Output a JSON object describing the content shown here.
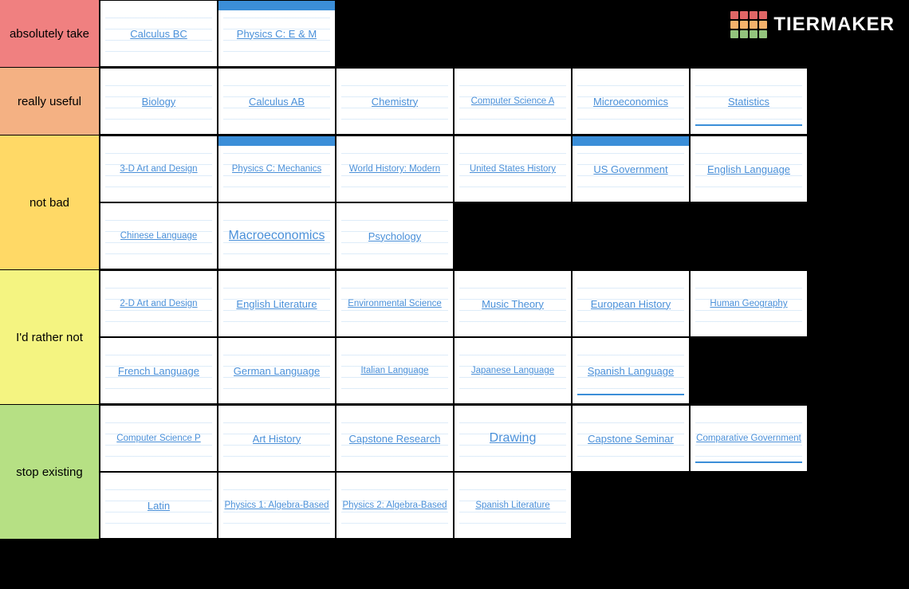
{
  "brand": {
    "name": "TIERMAKER"
  },
  "logo_colors": {
    "row1": "#e06666",
    "row2": "#f6b26b",
    "row3": "#93c47d"
  },
  "link_color": "#4a90d9",
  "topbar_color": "#3b8ed8",
  "item_bg": "#ffffff",
  "page_bg": "#000000",
  "tiers": [
    {
      "label": "absolutely take",
      "color": "#f08080",
      "items": [
        {
          "text": "Calculus BC",
          "size": "normal",
          "topbar": false
        },
        {
          "text": "Physics C: E & M",
          "size": "normal",
          "topbar": true
        }
      ]
    },
    {
      "label": "really useful",
      "color": "#f4b183",
      "items": [
        {
          "text": "Biology",
          "size": "normal"
        },
        {
          "text": "Calculus AB",
          "size": "normal"
        },
        {
          "text": "Chemistry",
          "size": "normal"
        },
        {
          "text": "Computer Science A",
          "size": "small"
        },
        {
          "text": "Microeconomics",
          "size": "normal"
        },
        {
          "text": "Statistics",
          "size": "normal",
          "botline": true
        }
      ]
    },
    {
      "label": "not bad",
      "color": "#ffd966",
      "items": [
        {
          "text": "3-D Art and Design",
          "size": "small"
        },
        {
          "text": "Physics C: Mechanics",
          "size": "small",
          "topbar": true
        },
        {
          "text": "World History: Modern",
          "size": "small"
        },
        {
          "text": "United States History",
          "size": "small"
        },
        {
          "text": "US Government",
          "size": "normal",
          "topbar": true
        },
        {
          "text": "English Language",
          "size": "normal"
        },
        {
          "text": "Chinese Language",
          "size": "small"
        },
        {
          "text": "Macroeconomics",
          "size": "big"
        },
        {
          "text": "Psychology",
          "size": "normal"
        }
      ]
    },
    {
      "label": "I'd rather not",
      "color": "#f4f481",
      "items": [
        {
          "text": "2-D Art and Design",
          "size": "small"
        },
        {
          "text": "English Literature",
          "size": "normal"
        },
        {
          "text": "Environmental Science",
          "size": "small"
        },
        {
          "text": "Music Theory",
          "size": "normal"
        },
        {
          "text": "European History",
          "size": "normal"
        },
        {
          "text": "Human Geography",
          "size": "small"
        },
        {
          "text": "French Language",
          "size": "normal"
        },
        {
          "text": "German Language",
          "size": "normal"
        },
        {
          "text": "Italian Language",
          "size": "small"
        },
        {
          "text": "Japanese Language",
          "size": "small"
        },
        {
          "text": "Spanish Language",
          "size": "normal",
          "botline": true
        }
      ]
    },
    {
      "label": "stop existing",
      "color": "#b6e084",
      "items": [
        {
          "text": "Computer Science P",
          "size": "small"
        },
        {
          "text": "Art History",
          "size": "normal"
        },
        {
          "text": "Capstone Research",
          "size": "normal"
        },
        {
          "text": "Drawing",
          "size": "big"
        },
        {
          "text": "Capstone Seminar",
          "size": "normal"
        },
        {
          "text": "Comparative Government",
          "size": "small",
          "botline": true
        },
        {
          "text": "Latin",
          "size": "normal"
        },
        {
          "text": "Physics 1: Algebra-Based",
          "size": "small"
        },
        {
          "text": "Physics 2: Algebra-Based",
          "size": "small"
        },
        {
          "text": "Spanish Literature",
          "size": "small"
        }
      ]
    }
  ]
}
